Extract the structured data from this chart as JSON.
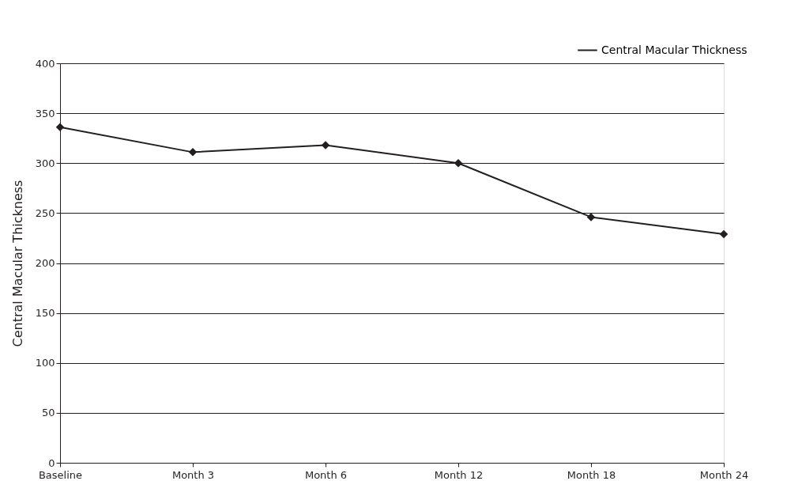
{
  "chart_data": {
    "type": "line",
    "ylabel": "Central Macular Thickness",
    "categories": [
      "Baseline",
      "Month 3",
      "Month 6",
      "Month 12",
      "Month 18",
      "Month 24"
    ],
    "series": [
      {
        "name": "Central Macular Thickness",
        "color": "#231f20",
        "values": [
          336,
          311,
          318,
          300,
          246,
          229
        ]
      }
    ],
    "ylim": [
      0,
      400
    ],
    "yticks": [
      0,
      50,
      100,
      150,
      200,
      250,
      300,
      350,
      400
    ],
    "grid": "y",
    "legend": "top right",
    "marker": "diamond",
    "line_style": "solid"
  }
}
